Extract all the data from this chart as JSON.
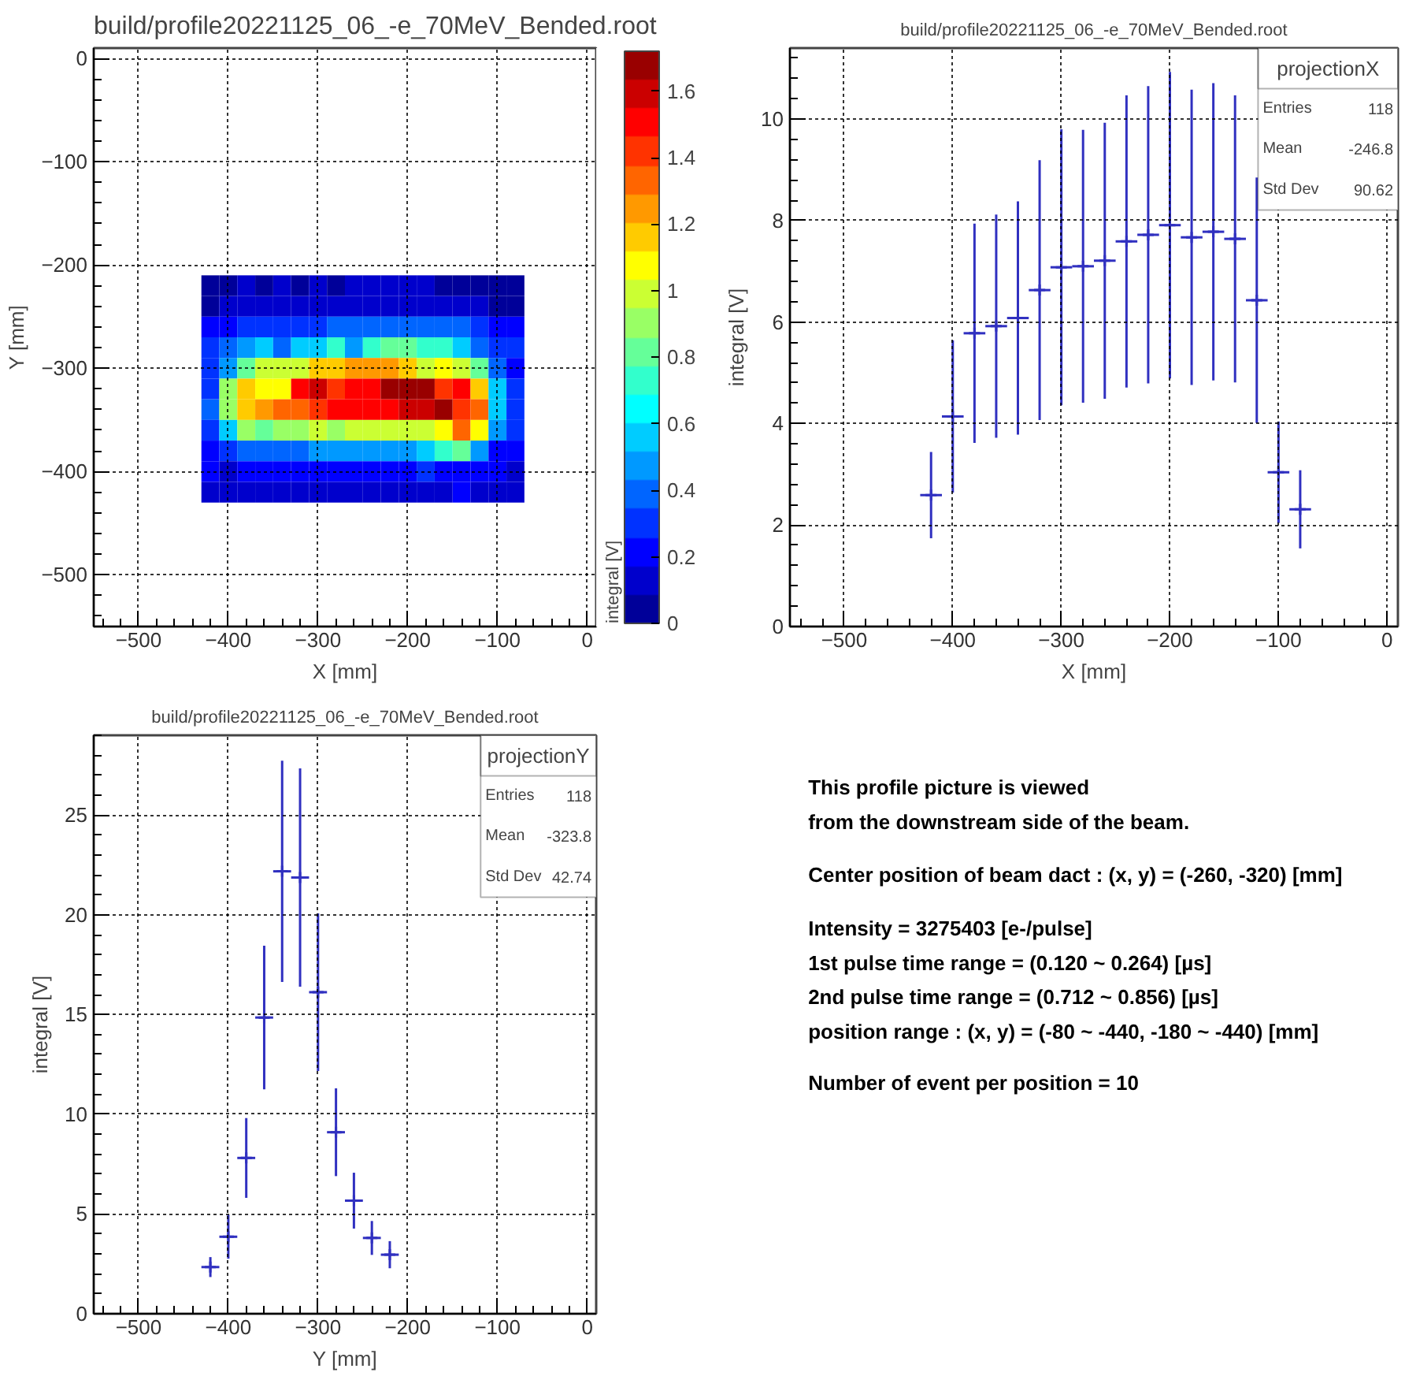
{
  "chart_data": [
    {
      "type": "heatmap",
      "title": "build/profile20221125_06_-e_70MeV_Bended.root",
      "xlabel": "X [mm]",
      "ylabel": "Y [mm]",
      "clabel": "integral [V]",
      "xlim": [
        -550,
        10
      ],
      "xticks": [
        -500,
        -400,
        -300,
        -200,
        -100,
        0
      ],
      "ylim": [
        -550,
        10
      ],
      "yticks": [
        -500,
        -400,
        -300,
        -200,
        -100,
        0
      ],
      "grid": true,
      "clim": [
        0,
        1.72
      ],
      "cticks": [
        0,
        0.2,
        0.4,
        0.6,
        0.8,
        1,
        1.2,
        1.4,
        1.6
      ],
      "x": [
        -420,
        -400,
        -380,
        -360,
        -340,
        -320,
        -300,
        -280,
        -260,
        -240,
        -220,
        -200,
        -180,
        -160,
        -140,
        -120,
        -100,
        -80
      ],
      "y": [
        -220,
        -240,
        -260,
        -280,
        -300,
        -320,
        -340,
        -360,
        -380,
        -400,
        -420
      ],
      "cells": [
        [
          0.08,
          0.08,
          0.17,
          0.08,
          0.17,
          0.08,
          0.17,
          0.08,
          0.17,
          0.17,
          0.17,
          0.17,
          0.17,
          0.08,
          0.08,
          0.08,
          0.08,
          0.08
        ],
        [
          0.08,
          0.17,
          0.17,
          0.17,
          0.17,
          0.17,
          0.17,
          0.17,
          0.17,
          0.17,
          0.17,
          0.17,
          0.17,
          0.17,
          0.17,
          0.17,
          0.08,
          0.08
        ],
        [
          0.2,
          0.2,
          0.3,
          0.3,
          0.3,
          0.3,
          0.3,
          0.4,
          0.4,
          0.4,
          0.4,
          0.4,
          0.4,
          0.4,
          0.4,
          0.3,
          0.2,
          0.2
        ],
        [
          0.3,
          0.4,
          0.5,
          0.6,
          0.4,
          0.6,
          0.6,
          0.7,
          0.5,
          0.7,
          0.8,
          0.8,
          0.7,
          0.7,
          0.6,
          0.4,
          0.3,
          0.3
        ],
        [
          0.3,
          0.5,
          0.8,
          1.0,
          1.0,
          1.0,
          1.15,
          1.15,
          1.25,
          1.25,
          1.25,
          1.15,
          1.0,
          1.08,
          0.95,
          0.8,
          0.4,
          0.2
        ],
        [
          0.3,
          0.9,
          1.15,
          1.08,
          1.08,
          1.5,
          1.6,
          1.45,
          1.5,
          1.5,
          1.68,
          1.68,
          1.68,
          1.45,
          1.5,
          1.15,
          0.55,
          0.3
        ],
        [
          0.4,
          0.9,
          1.15,
          1.25,
          1.35,
          1.35,
          1.4,
          1.5,
          1.5,
          1.5,
          1.5,
          1.6,
          1.6,
          1.68,
          1.45,
          1.35,
          0.55,
          0.3
        ],
        [
          0.3,
          0.6,
          0.9,
          0.8,
          0.9,
          0.9,
          0.95,
          0.9,
          1.0,
          1.0,
          1.0,
          1.0,
          1.0,
          1.08,
          1.35,
          1.08,
          0.45,
          0.3
        ],
        [
          0.2,
          0.3,
          0.4,
          0.4,
          0.4,
          0.4,
          0.5,
          0.5,
          0.5,
          0.5,
          0.5,
          0.5,
          0.6,
          0.7,
          0.8,
          0.5,
          0.2,
          0.2
        ],
        [
          0.2,
          0.1,
          0.2,
          0.2,
          0.2,
          0.2,
          0.2,
          0.2,
          0.2,
          0.2,
          0.2,
          0.2,
          0.3,
          0.2,
          0.2,
          0.2,
          0.2,
          0.1
        ],
        [
          0.1,
          0.1,
          0.1,
          0.1,
          0.1,
          0.1,
          0.1,
          0.1,
          0.1,
          0.1,
          0.1,
          0.1,
          0.1,
          0.1,
          0.2,
          0.1,
          0.1,
          0.1
        ]
      ]
    },
    {
      "type": "scatter",
      "title": "build/profile20221125_06_-e_70MeV_Bended.root",
      "xlabel": "X [mm]",
      "ylabel": "integral [V]",
      "legend_title": "projectionX",
      "annotations": [
        "Entries",
        "118",
        "Mean",
        "-246.8",
        "Std Dev",
        "90.62"
      ],
      "xlim": [
        -550,
        10
      ],
      "xticks": [
        -500,
        -400,
        -300,
        -200,
        -100,
        0
      ],
      "ylim": [
        0,
        11.4
      ],
      "yticks": [
        0,
        2,
        4,
        6,
        8,
        10
      ],
      "grid": true,
      "marker": "cross",
      "x": [
        -420,
        -400,
        -380,
        -360,
        -340,
        -320,
        -300,
        -280,
        -260,
        -240,
        -220,
        -200,
        -180,
        -160,
        -140,
        -120,
        -100,
        -80
      ],
      "series": [
        {
          "color": "#3030c0",
          "values": [
            2.59,
            4.14,
            5.78,
            5.92,
            6.08,
            6.63,
            7.08,
            7.1,
            7.21,
            7.59,
            7.72,
            7.91,
            7.67,
            7.78,
            7.64,
            6.43,
            3.04,
            2.31
          ],
          "errors": [
            0.85,
            1.5,
            2.16,
            2.2,
            2.3,
            2.56,
            2.72,
            2.69,
            2.72,
            2.88,
            2.93,
            3.02,
            2.91,
            2.93,
            2.83,
            2.42,
            1.0,
            0.77
          ],
          "xerrors": [
            10,
            10,
            10,
            10,
            10,
            10,
            10,
            10,
            10,
            10,
            10,
            10,
            10,
            10,
            10,
            10,
            10,
            10
          ]
        }
      ]
    },
    {
      "type": "scatter",
      "title": "build/profile20221125_06_-e_70MeV_Bended.root",
      "xlabel": "Y [mm]",
      "ylabel": "integral [V]",
      "legend_title": "projectionY",
      "annotations": [
        "Entries",
        "118",
        "Mean",
        "-323.8",
        "Std Dev",
        "42.74"
      ],
      "xlim": [
        -550,
        10
      ],
      "xticks": [
        -500,
        -400,
        -300,
        -200,
        -100,
        0
      ],
      "ylim": [
        0,
        29
      ],
      "yticks": [
        0,
        5,
        10,
        15,
        20,
        25
      ],
      "grid": true,
      "marker": "cross",
      "x": [
        -420,
        -400,
        -380,
        -360,
        -340,
        -320,
        -300,
        -280,
        -260,
        -240,
        -220
      ],
      "series": [
        {
          "color": "#3030c0",
          "values": [
            2.34,
            3.86,
            7.81,
            14.85,
            22.18,
            21.87,
            16.12,
            9.1,
            5.67,
            3.8,
            2.96
          ],
          "errors": [
            0.5,
            1.1,
            2.0,
            3.6,
            5.55,
            5.47,
            3.95,
            2.2,
            1.4,
            0.85,
            0.68
          ],
          "xerrors": [
            10,
            10,
            10,
            10,
            10,
            10,
            10,
            10,
            10,
            10,
            10
          ]
        }
      ]
    },
    {
      "type": "other",
      "annotations": [
        "This profile picture is viewed\n from the downstream side of the beam.",
        "Center position of beam dact : (x, y) = (-260, -320) [mm]",
        "Intensity = 3275403 [e-/pulse]\n  1st pulse time range = (0.120 ~ 0.264) [µs]\n  2nd pulse time range = (0.712 ~ 0.856) [µs]\n  position range : (x, y) = (-80 ~ -440, -180 ~ -440) [mm]",
        "Number of event per position = 10"
      ]
    }
  ]
}
